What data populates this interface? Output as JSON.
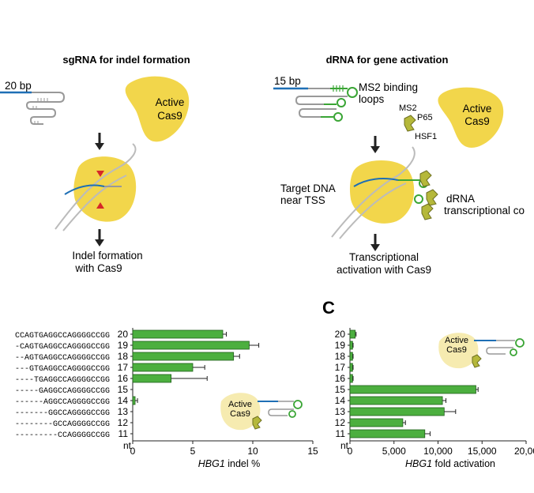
{
  "left_diagram": {
    "title": "sgRNA for indel formation",
    "spacer_label": "20 bp",
    "cas9_label_line1": "Active",
    "cas9_label_line2": "Cas9",
    "result_line1": "Indel formation",
    "result_line2": "with Cas9"
  },
  "right_diagram": {
    "title": "dRNA for gene activation",
    "spacer_label": "15 bp",
    "ms2_loops_line1": "MS2 binding",
    "ms2_loops_line2": "loops",
    "ms2_label": "MS2",
    "p65_label": "P65",
    "hsf1_label": "HSF1",
    "cas9_label_line1": "Active",
    "cas9_label_line2": "Cas9",
    "target_line1": "Target DNA",
    "target_line2": "near TSS",
    "drna_line1": "dRNA",
    "drna_line2": "transcriptional co",
    "result_line1": "Transcriptional",
    "result_line2": "activation with Cas9"
  },
  "panel_c_label": "C",
  "sequences": [
    {
      "nt": "20",
      "seq": "CCAGTGAGGCCAGGGGCCGG"
    },
    {
      "nt": "19",
      "seq": "-CAGTGAGGCCAGGGGCCGG"
    },
    {
      "nt": "18",
      "seq": "--AGTGAGGCCAGGGGCCGG"
    },
    {
      "nt": "17",
      "seq": "---GTGAGGCCAGGGGCCGG"
    },
    {
      "nt": "16",
      "seq": "----TGAGGCCAGGGGCCGG"
    },
    {
      "nt": "15",
      "seq": "-----GAGGCCAGGGGCCGG"
    },
    {
      "nt": "14",
      "seq": "------AGGCCAGGGGCCGG"
    },
    {
      "nt": "13",
      "seq": "-------GGCCAGGGGCCGG"
    },
    {
      "nt": "12",
      "seq": "--------GCCAGGGGCCGG"
    },
    {
      "nt": "11",
      "seq": "---------CCAGGGGCCGG"
    }
  ],
  "inset_b": {
    "line1": "Active",
    "line2": "Cas9"
  },
  "inset_c": {
    "line1": "Active",
    "line2": "Cas9"
  },
  "colors": {
    "bar": "#4caf3f",
    "cas9": "#f2d64b",
    "cas9_faint": "#f6ebb0",
    "blue": "#1e6fb5",
    "green_loop": "#3aa535"
  },
  "chart_data": [
    {
      "type": "bar",
      "orientation": "horizontal",
      "categories": [
        "20",
        "19",
        "18",
        "17",
        "16",
        "15",
        "14",
        "13",
        "12",
        "11"
      ],
      "values": [
        7.5,
        9.7,
        8.4,
        5.0,
        3.2,
        0.0,
        0.2,
        0.0,
        0.0,
        0.0
      ],
      "errors": [
        0.3,
        0.8,
        0.5,
        1.0,
        3.0,
        0.0,
        0.2,
        0.0,
        0.0,
        0.0
      ],
      "title": "",
      "xlabel_italic": "HBG1",
      "xlabel_rest": " indel %",
      "ylabel": "nt",
      "xticks": [
        "0",
        "5",
        "10",
        "15"
      ],
      "xlim": [
        0,
        15
      ]
    },
    {
      "type": "bar",
      "orientation": "horizontal",
      "categories": [
        "20",
        "19",
        "18",
        "17",
        "16",
        "15",
        "14",
        "13",
        "12",
        "11"
      ],
      "values": [
        600,
        300,
        300,
        300,
        300,
        14300,
        10500,
        10700,
        6000,
        8500
      ],
      "errors": [
        100,
        60,
        60,
        60,
        60,
        250,
        400,
        1300,
        300,
        600
      ],
      "title": "",
      "xlabel_italic": "HBG1",
      "xlabel_rest": " fold activation",
      "ylabel": "nt",
      "xticks": [
        "0",
        "5,000",
        "10,000",
        "15,000",
        "20,00"
      ],
      "xlim": [
        0,
        20000
      ]
    }
  ]
}
